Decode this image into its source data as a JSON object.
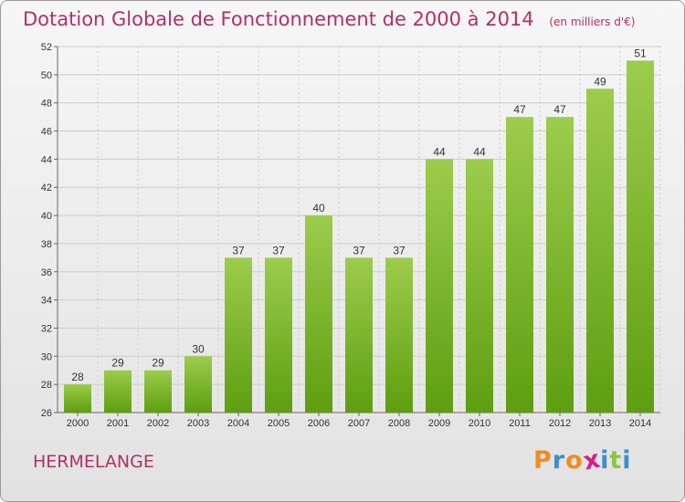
{
  "chart_data": {
    "type": "bar",
    "title": "Dotation Globale de Fonctionnement de 2000 à 2014",
    "subtitle": "(en milliers d'€)",
    "categories": [
      "2000",
      "2001",
      "2002",
      "2003",
      "2004",
      "2005",
      "2006",
      "2007",
      "2008",
      "2009",
      "2010",
      "2011",
      "2012",
      "2013",
      "2014"
    ],
    "values": [
      28,
      29,
      29,
      30,
      37,
      37,
      40,
      37,
      37,
      44,
      44,
      47,
      47,
      49,
      51
    ],
    "ylim": [
      26,
      52
    ],
    "yticks": [
      26,
      28,
      30,
      32,
      34,
      36,
      38,
      40,
      42,
      44,
      46,
      48,
      50,
      52
    ],
    "grid": true,
    "bar_color_top": "#9ccc4c",
    "bar_color_bottom": "#5e9e10"
  },
  "commune": "HERMELANGE",
  "logo": {
    "text": "Proxiti",
    "letter_colors": [
      "#f08c1e",
      "#3a8fd0",
      "#f08c1e",
      "#d0208a",
      "#3a8fd0",
      "#8cc63f",
      "#3a8fd0"
    ]
  },
  "colors": {
    "title": "#b0306a",
    "grid": "#cccccc",
    "axis": "#666666"
  }
}
